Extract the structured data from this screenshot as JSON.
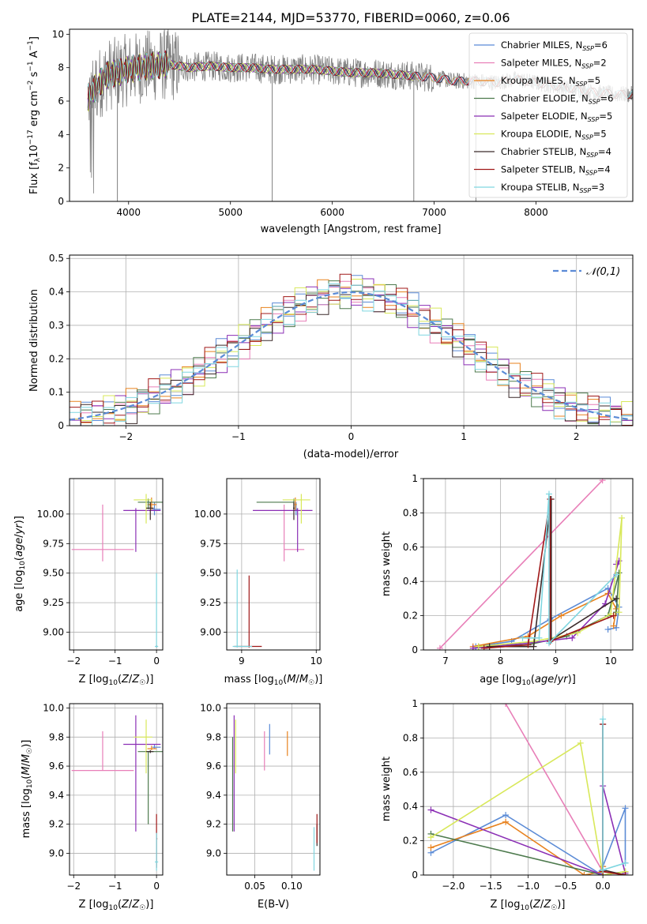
{
  "figure_title": "PLATE=2144, MJD=53770, FIBERID=0060, z=0.06",
  "colors": {
    "Chabrier MILES": "#5b8bd6",
    "Salpeter MILES": "#e87fb8",
    "Kroupa MILES": "#e8821e",
    "Chabrier ELODIE": "#4d7a4d",
    "Salpeter ELODIE": "#8b2fb5",
    "Kroupa ELODIE": "#d8e85a",
    "Chabrier STELIB": "#3a2a2a",
    "Salpeter STELIB": "#a01818",
    "Kroupa STELIB": "#7fd6e0",
    "data": "#808080"
  },
  "chart_data": [
    {
      "type": "line",
      "id": "spectrum",
      "xlabel": "wavelength [Angstrom, rest frame]",
      "ylabel": "Flux [f_λ 10^-17 erg cm^-2 s^-1 A^-1]",
      "xlim": [
        3420,
        8950
      ],
      "ylim": [
        0,
        10.3
      ],
      "xticks": [
        4000,
        5000,
        6000,
        7000,
        8000
      ],
      "yticks": [
        0,
        2,
        4,
        6,
        8,
        10
      ],
      "grid": false,
      "legend_position": "top-right",
      "legend": [
        "Chabrier MILES, N_SSP=6",
        "Salpeter MILES, N_SSP=2",
        "Kroupa MILES, N_SSP=5",
        "Chabrier ELODIE, N_SSP=6",
        "Salpeter ELODIE, N_SSP=5",
        "Kroupa ELODIE, N_SSP=5",
        "Chabrier STELIB, N_SSP=4",
        "Salpeter STELIB, N_SSP=4",
        "Kroupa STELIB, N_SSP=3"
      ],
      "data_envelope": {
        "x": [
          3600,
          3700,
          3800,
          3900,
          4000,
          4200,
          4400,
          4600,
          4800,
          5000,
          5200,
          5400,
          5600,
          5800,
          6000,
          6200,
          6400,
          6600,
          6800,
          7000,
          7200,
          7400,
          7600,
          7800,
          8000,
          8200,
          8400,
          8600,
          8800,
          8950
        ],
        "y": [
          6.2,
          7.0,
          7.6,
          7.7,
          7.9,
          8.1,
          8.2,
          8.0,
          8.1,
          8.0,
          8.0,
          7.9,
          7.9,
          7.9,
          7.8,
          7.7,
          7.7,
          7.6,
          7.5,
          7.4,
          7.2,
          7.2,
          7.1,
          7.3,
          7.1,
          6.9,
          6.7,
          6.5,
          6.4,
          6.4
        ]
      },
      "model_ends": {
        "Chabrier MILES": 7410,
        "Salpeter MILES": 7410,
        "Kroupa MILES": 7410,
        "Chabrier ELODIE": 6800,
        "Salpeter ELODIE": 6800,
        "Kroupa ELODIE": 6800,
        "Chabrier STELIB": 8950,
        "Salpeter STELIB": 8950,
        "Kroupa STELIB": 8950
      }
    },
    {
      "type": "line",
      "id": "residual-histogram",
      "xlabel": "(data-model)/error",
      "ylabel": "Normed distribution",
      "xlim": [
        -2.5,
        2.5
      ],
      "ylim": [
        0,
        0.51
      ],
      "xticks": [
        -2,
        -1,
        0,
        1,
        2
      ],
      "yticks": [
        0.0,
        0.1,
        0.2,
        0.3,
        0.4,
        0.5
      ],
      "grid": true,
      "legend_position": "top-right",
      "legend": [
        "𝒩(0,1)"
      ],
      "bin_width": 0.1
    },
    {
      "type": "scatter",
      "id": "age-vs-Z",
      "xlabel": "Z [log10(Z/Z⊙)]",
      "ylabel": "age [log10(age/yr)]",
      "xlim": [
        -2.1,
        0.15
      ],
      "ylim": [
        8.85,
        10.3
      ],
      "xticks": [
        -2,
        -1,
        0
      ],
      "yticks": [
        9.0,
        9.25,
        9.5,
        9.75,
        10.0
      ],
      "ytick_labels": [
        "9.00",
        "9.25",
        "9.50",
        "9.75",
        "10.00"
      ],
      "grid": true,
      "points": [
        {
          "model": "Chabrier MILES",
          "x": -0.05,
          "y": 10.04,
          "xerr": [
            0.05,
            0.15
          ],
          "yerr": [
            0.05,
            0.06
          ]
        },
        {
          "model": "Salpeter MILES",
          "x": -1.3,
          "y": 9.7,
          "xerr": [
            0.75,
            0.75
          ],
          "yerr": [
            0.1,
            0.38
          ]
        },
        {
          "model": "Kroupa MILES",
          "x": -0.12,
          "y": 10.08,
          "xerr": [
            0.1,
            0.12
          ],
          "yerr": [
            0.05,
            0.06
          ]
        },
        {
          "model": "Chabrier ELODIE",
          "x": -0.2,
          "y": 10.1,
          "xerr": [
            0.25,
            0.35
          ],
          "yerr": [
            0.06,
            0.03
          ]
        },
        {
          "model": "Salpeter ELODIE",
          "x": -0.5,
          "y": 10.03,
          "xerr": [
            0.3,
            0.6
          ],
          "yerr": [
            0.35,
            0.02
          ]
        },
        {
          "model": "Kroupa ELODIE",
          "x": -0.25,
          "y": 10.12,
          "xerr": [
            0.3,
            0.15
          ],
          "yerr": [
            0.2,
            0.05
          ]
        },
        {
          "model": "Chabrier STELIB",
          "x": -0.15,
          "y": 10.05,
          "xerr": [
            0.1,
            0.08
          ],
          "yerr": [
            0.1,
            0.05
          ]
        },
        {
          "model": "Salpeter STELIB",
          "x": 0.0,
          "y": 8.88,
          "xerr": [
            0.0,
            0.02
          ],
          "yerr": [
            0.01,
            0.01
          ]
        },
        {
          "model": "Kroupa STELIB",
          "x": 0.0,
          "y": 8.88,
          "xerr": [
            0.04,
            0.04
          ],
          "yerr": [
            0.01,
            0.62
          ]
        }
      ]
    },
    {
      "type": "scatter",
      "id": "age-vs-mass",
      "xlabel": "mass [log10(M/M⊙)]",
      "ylabel": "",
      "xlim": [
        8.8,
        10.05
      ],
      "ylim": [
        8.85,
        10.3
      ],
      "xticks": [
        9,
        10
      ],
      "yticks": [
        9.0,
        9.25,
        9.5,
        9.75,
        10.0
      ],
      "ytick_labels": [
        "9.00",
        "9.25",
        "9.50",
        "9.75",
        "10.00"
      ],
      "grid": true,
      "points": [
        {
          "model": "Chabrier MILES",
          "x": 9.73,
          "y": 10.04,
          "xerr": [
            0.01,
            0.02
          ],
          "yerr": [
            0.05,
            0.06
          ]
        },
        {
          "model": "Salpeter MILES",
          "x": 9.57,
          "y": 9.7,
          "xerr": [
            0.0,
            0.27
          ],
          "yerr": [
            0.1,
            0.38
          ]
        },
        {
          "model": "Kroupa MILES",
          "x": 9.72,
          "y": 10.08,
          "xerr": [
            0.01,
            0.02
          ],
          "yerr": [
            0.05,
            0.06
          ]
        },
        {
          "model": "Chabrier ELODIE",
          "x": 9.7,
          "y": 10.1,
          "xerr": [
            0.5,
            0.0
          ],
          "yerr": [
            0.06,
            0.03
          ]
        },
        {
          "model": "Salpeter ELODIE",
          "x": 9.75,
          "y": 10.03,
          "xerr": [
            0.6,
            0.2
          ],
          "yerr": [
            0.35,
            0.02
          ]
        },
        {
          "model": "Kroupa ELODIE",
          "x": 9.8,
          "y": 10.12,
          "xerr": [
            0.25,
            0.12
          ],
          "yerr": [
            0.2,
            0.05
          ]
        },
        {
          "model": "Chabrier STELIB",
          "x": 9.7,
          "y": 10.05,
          "xerr": [
            0.01,
            0.01
          ],
          "yerr": [
            0.1,
            0.05
          ]
        },
        {
          "model": "Salpeter STELIB",
          "x": 9.1,
          "y": 8.88,
          "xerr": [
            0.2,
            0.17
          ],
          "yerr": [
            0.01,
            0.6
          ]
        },
        {
          "model": "Kroupa STELIB",
          "x": 8.94,
          "y": 8.88,
          "xerr": [
            0.06,
            0.2
          ],
          "yerr": [
            0.01,
            0.65
          ]
        }
      ]
    },
    {
      "type": "line",
      "id": "mass-weight-vs-age",
      "xlabel": "age [log10(age/yr)]",
      "ylabel": "mass weight",
      "xlim": [
        6.6,
        10.4
      ],
      "ylim": [
        0,
        1.0
      ],
      "xticks": [
        7,
        8,
        9,
        10
      ],
      "yticks": [
        0.0,
        0.2,
        0.4,
        0.6,
        0.8,
        1.0
      ],
      "grid": true,
      "series": [
        {
          "model": "Chabrier MILES",
          "x": [
            7.55,
            8.2,
            8.9,
            9.95,
            10.15,
            10.1,
            9.95
          ],
          "y": [
            0.02,
            0.05,
            0.18,
            0.36,
            0.25,
            0.13,
            0.12
          ]
        },
        {
          "model": "Salpeter MILES",
          "x": [
            6.9,
            9.85
          ],
          "y": [
            0.01,
            0.99
          ]
        },
        {
          "model": "Kroupa MILES",
          "x": [
            7.5,
            8.5,
            9.1,
            9.95,
            10.1,
            10.05
          ],
          "y": [
            0.02,
            0.08,
            0.2,
            0.33,
            0.24,
            0.14
          ]
        },
        {
          "model": "Chabrier ELODIE",
          "x": [
            7.6,
            8.5,
            9.2,
            9.95,
            10.15,
            10.1
          ],
          "y": [
            0.02,
            0.03,
            0.08,
            0.2,
            0.45,
            0.22
          ]
        },
        {
          "model": "Salpeter ELODIE",
          "x": [
            7.5,
            8.5,
            9.3,
            9.9,
            10.15,
            10.1
          ],
          "y": [
            0.01,
            0.04,
            0.07,
            0.27,
            0.52,
            0.5
          ]
        },
        {
          "model": "Kroupa ELODIE",
          "x": [
            7.6,
            8.6,
            9.4,
            10.0,
            10.2,
            10.15
          ],
          "y": [
            0.02,
            0.05,
            0.1,
            0.21,
            0.77,
            0.22
          ]
        },
        {
          "model": "Chabrier STELIB",
          "x": [
            7.8,
            8.6,
            8.92,
            8.92,
            10.1
          ],
          "y": [
            0.02,
            0.02,
            0.88,
            0.06,
            0.3
          ]
        },
        {
          "model": "Salpeter STELIB",
          "x": [
            7.7,
            8.5,
            8.9,
            8.9,
            10.05
          ],
          "y": [
            0.01,
            0.03,
            0.88,
            0.05,
            0.2
          ]
        },
        {
          "model": "Kroupa STELIB",
          "x": [
            8.4,
            8.7,
            8.88,
            8.88,
            10.1
          ],
          "y": [
            0.07,
            0.07,
            0.91,
            0.04,
            0.44
          ]
        }
      ]
    },
    {
      "type": "scatter",
      "id": "mass-vs-Z",
      "xlabel": "Z [log10(Z/Z⊙)]",
      "ylabel": "mass [log10(M/M⊙)]",
      "xlim": [
        -2.1,
        0.15
      ],
      "ylim": [
        8.85,
        10.03
      ],
      "xticks": [
        -2,
        -1,
        0
      ],
      "yticks": [
        9.0,
        9.2,
        9.4,
        9.6,
        9.8,
        10.0
      ],
      "ytick_labels": [
        "9.0",
        "9.2",
        "9.4",
        "9.6",
        "9.8",
        "10.0"
      ],
      "grid": true,
      "points": [
        {
          "model": "Chabrier MILES",
          "x": -0.05,
          "y": 9.73,
          "xerr": [
            0.05,
            0.15
          ],
          "yerr": [
            0.01,
            0.02
          ]
        },
        {
          "model": "Salpeter MILES",
          "x": -1.3,
          "y": 9.57,
          "xerr": [
            0.75,
            0.75
          ],
          "yerr": [
            0.0,
            0.27
          ]
        },
        {
          "model": "Kroupa MILES",
          "x": -0.12,
          "y": 9.72,
          "xerr": [
            0.1,
            0.12
          ],
          "yerr": [
            0.01,
            0.02
          ]
        },
        {
          "model": "Chabrier ELODIE",
          "x": -0.2,
          "y": 9.7,
          "xerr": [
            0.25,
            0.35
          ],
          "yerr": [
            0.5,
            0.0
          ]
        },
        {
          "model": "Salpeter ELODIE",
          "x": -0.5,
          "y": 9.75,
          "xerr": [
            0.3,
            0.6
          ],
          "yerr": [
            0.6,
            0.2
          ]
        },
        {
          "model": "Kroupa ELODIE",
          "x": -0.25,
          "y": 9.8,
          "xerr": [
            0.3,
            0.15
          ],
          "yerr": [
            0.25,
            0.12
          ]
        },
        {
          "model": "Chabrier STELIB",
          "x": -0.15,
          "y": 9.7,
          "xerr": [
            0.1,
            0.08
          ],
          "yerr": [
            0.01,
            0.01
          ]
        },
        {
          "model": "Salpeter STELIB",
          "x": 0.0,
          "y": 9.1,
          "xerr": [
            0.0,
            0.02
          ],
          "yerr": [
            0.2,
            0.17
          ]
        },
        {
          "model": "Kroupa STELIB",
          "x": 0.0,
          "y": 8.94,
          "xerr": [
            0.04,
            0.04
          ],
          "yerr": [
            0.06,
            0.2
          ]
        }
      ]
    },
    {
      "type": "scatter",
      "id": "mass-vs-EBV",
      "xlabel": "E(B-V)",
      "ylabel": "",
      "xlim": [
        0.012,
        0.138
      ],
      "ylim": [
        8.85,
        10.03
      ],
      "xticks": [
        0.05,
        0.1
      ],
      "xtick_labels": [
        "0.05",
        "0.10"
      ],
      "yticks": [
        9.0,
        9.2,
        9.4,
        9.6,
        9.8,
        10.0
      ],
      "ytick_labels": [
        "9.0",
        "9.2",
        "9.4",
        "9.6",
        "9.8",
        "10.0"
      ],
      "grid": true,
      "points": [
        {
          "model": "Chabrier MILES",
          "x": 0.07,
          "y": 9.73,
          "xerr": [
            0,
            0
          ],
          "yerr": [
            0.05,
            0.16
          ]
        },
        {
          "model": "Salpeter MILES",
          "x": 0.063,
          "y": 9.57,
          "xerr": [
            0,
            0
          ],
          "yerr": [
            0.0,
            0.27
          ]
        },
        {
          "model": "Kroupa MILES",
          "x": 0.094,
          "y": 9.72,
          "xerr": [
            0,
            0
          ],
          "yerr": [
            0.05,
            0.12
          ]
        },
        {
          "model": "Chabrier ELODIE",
          "x": 0.02,
          "y": 9.7,
          "xerr": [
            0,
            0
          ],
          "yerr": [
            0.55,
            0.1
          ]
        },
        {
          "model": "Salpeter ELODIE",
          "x": 0.022,
          "y": 9.75,
          "xerr": [
            0,
            0
          ],
          "yerr": [
            0.6,
            0.2
          ]
        },
        {
          "model": "Kroupa ELODIE",
          "x": 0.024,
          "y": 9.8,
          "xerr": [
            0,
            0
          ],
          "yerr": [
            0.25,
            0.12
          ]
        },
        {
          "model": "Chabrier STELIB",
          "x": 0.134,
          "y": 9.1,
          "xerr": [
            0,
            0
          ],
          "yerr": [
            0.05,
            0.1
          ]
        },
        {
          "model": "Salpeter STELIB",
          "x": 0.134,
          "y": 9.1,
          "xerr": [
            0,
            0
          ],
          "yerr": [
            0.03,
            0.17
          ]
        },
        {
          "model": "Kroupa STELIB",
          "x": 0.13,
          "y": 8.98,
          "xerr": [
            0,
            0
          ],
          "yerr": [
            0.1,
            0.2
          ]
        }
      ]
    },
    {
      "type": "line",
      "id": "mass-weight-vs-Z",
      "xlabel": "Z [log10(Z/Z⊙)]",
      "ylabel": "mass weight",
      "xlim": [
        -2.4,
        0.4
      ],
      "ylim": [
        0,
        1.0
      ],
      "xticks": [
        -2.0,
        -1.5,
        -1.0,
        -0.5,
        0.0
      ],
      "xtick_labels": [
        "−2.0",
        "−1.5",
        "−1.0",
        "−0.5",
        "0.0"
      ],
      "yticks": [
        0.0,
        0.2,
        0.4,
        0.6,
        0.8,
        1.0
      ],
      "grid": true,
      "series": [
        {
          "model": "Chabrier MILES",
          "x": [
            -2.3,
            -1.3,
            -0.05,
            0.0,
            0.3,
            0.3
          ],
          "y": [
            0.13,
            0.35,
            0.01,
            0.05,
            0.39,
            0.07
          ]
        },
        {
          "model": "Salpeter MILES",
          "x": [
            -1.3,
            0.0
          ],
          "y": [
            1.0,
            0.02
          ]
        },
        {
          "model": "Kroupa MILES",
          "x": [
            -2.3,
            -1.3,
            -0.25,
            0.0,
            0.0
          ],
          "y": [
            0.16,
            0.31,
            0.0,
            0.02,
            0.05
          ]
        },
        {
          "model": "Chabrier ELODIE",
          "x": [
            -2.3,
            0.0,
            0.3
          ],
          "y": [
            0.24,
            0.0,
            0.02
          ]
        },
        {
          "model": "Salpeter ELODIE",
          "x": [
            -2.3,
            0.0,
            0.0,
            0.3
          ],
          "y": [
            0.38,
            0.0,
            0.52,
            0.01
          ]
        },
        {
          "model": "Kroupa ELODIE",
          "x": [
            -2.3,
            -0.3,
            0.0,
            0.3
          ],
          "y": [
            0.22,
            0.77,
            0.0,
            0.02
          ]
        },
        {
          "model": "Chabrier STELIB",
          "x": [
            0.0,
            0.0,
            0.3
          ],
          "y": [
            0.88,
            0.03,
            0.0
          ]
        },
        {
          "model": "Salpeter STELIB",
          "x": [
            0.0,
            0.0,
            0.3
          ],
          "y": [
            0.88,
            0.02,
            0.0
          ]
        },
        {
          "model": "Kroupa STELIB",
          "x": [
            0.0,
            0.0,
            0.3
          ],
          "y": [
            0.91,
            0.03,
            0.07
          ]
        }
      ]
    }
  ]
}
